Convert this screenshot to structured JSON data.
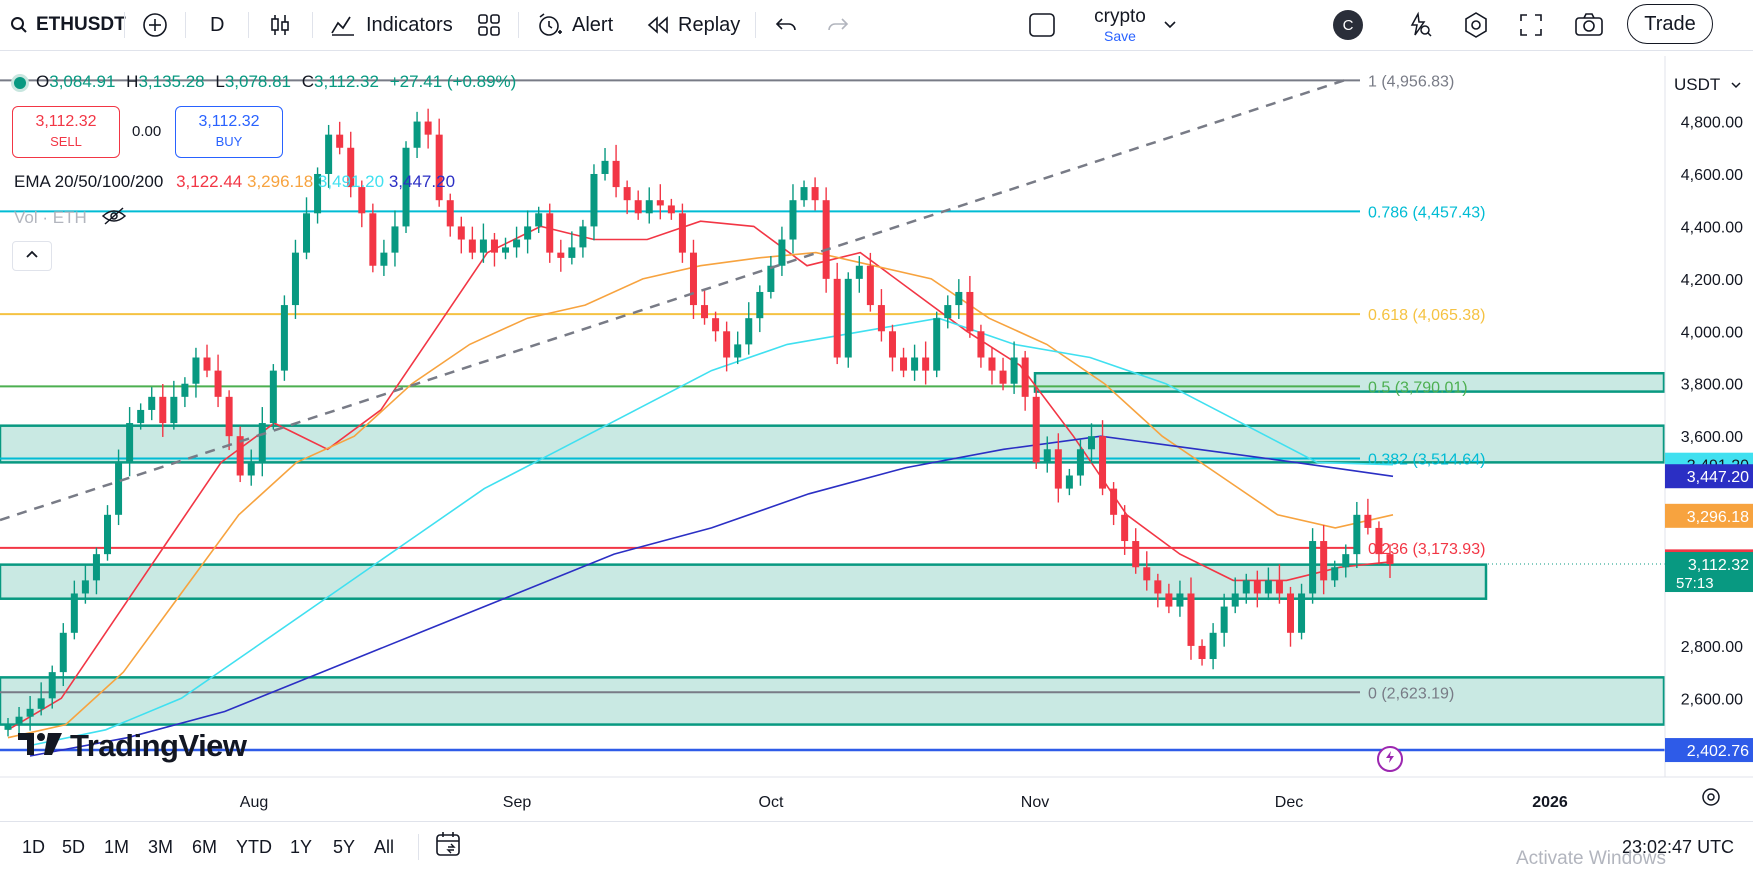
{
  "toolbar": {
    "symbol": "ETHUSDT",
    "interval": "D",
    "indicators_label": "Indicators",
    "alert_label": "Alert",
    "replay_label": "Replay",
    "layout_name": "crypto",
    "layout_save": "Save",
    "avatar_letter": "C",
    "trade_label": "Trade"
  },
  "ohlc": {
    "open_label": "O",
    "open": "3,084.91",
    "high_label": "H",
    "high": "3,135.28",
    "low_label": "L",
    "low": "3,078.81",
    "close_label": "C",
    "close": "3,112.32",
    "change": "+27.41 (+0.89%)"
  },
  "trade_panel": {
    "sell_price": "3,112.32",
    "sell_label": "SELL",
    "spread": "0.00",
    "buy_price": "3,112.32",
    "buy_label": "BUY"
  },
  "ema_legend": {
    "name": "EMA 20/50/100/200",
    "v20": "3,122.44",
    "v50": "3,296.18",
    "v100": "3,491.20",
    "v200": "3,447.20"
  },
  "vol_legend": {
    "label": "Vol · ETH"
  },
  "currency": "USDT",
  "time_axis_labels": [
    "Aug",
    "Sep",
    "Oct",
    "Nov",
    "Dec",
    "2026"
  ],
  "ranges": [
    "1D",
    "5D",
    "1M",
    "3M",
    "6M",
    "YTD",
    "1Y",
    "5Y",
    "All"
  ],
  "clock": "23:02:47 UTC",
  "watermark": "TradingView",
  "activate_text": "Activate Windows",
  "colors": {
    "up": "#089981",
    "down": "#f23645",
    "ema20": "#f23645",
    "ema50": "#f7a33f",
    "ema100": "#40e0f0",
    "ema200": "#2b2fc4",
    "fib_786": "#00bcd4",
    "fib_618": "#f5c242",
    "fib_5": "#4caf50",
    "fib_236": "#f23645",
    "fib_1": "#787b86",
    "fib_0": "#787b86",
    "zone": "#089981",
    "hline_low": "#2e5be8"
  },
  "chart_data": {
    "type": "candlestick",
    "symbol": "ETHUSDT",
    "interval": "D",
    "x_labels": [
      "Aug",
      "Sep",
      "Oct",
      "Nov",
      "Dec",
      "2026"
    ],
    "ylim": [
      2300,
      5050
    ],
    "y_ticks": [
      2600,
      2800,
      3000,
      3200,
      3400,
      3600,
      3800,
      4000,
      4200,
      4400,
      4600,
      4800
    ],
    "y_tick_labels": [
      "2,600.00",
      "2,800.00",
      "",
      "",
      "",
      "3,600.00",
      "3,800.00",
      "4,000.00",
      "4,200.00",
      "4,400.00",
      "4,600.00",
      "4,800.00"
    ],
    "close_series": [
      2500,
      2530,
      2560,
      2600,
      2700,
      2850,
      3000,
      3050,
      3150,
      3300,
      3500,
      3650,
      3700,
      3750,
      3650,
      3750,
      3800,
      3900,
      3850,
      3750,
      3600,
      3450,
      3500,
      3650,
      3850,
      4100,
      4300,
      4450,
      4600,
      4750,
      4700,
      4550,
      4450,
      4250,
      4300,
      4400,
      4700,
      4800,
      4750,
      4500,
      4400,
      4350,
      4300,
      4350,
      4300,
      4320,
      4350,
      4400,
      4450,
      4300,
      4280,
      4320,
      4400,
      4600,
      4650,
      4550,
      4500,
      4450,
      4500,
      4480,
      4450,
      4300,
      4100,
      4050,
      4000,
      3900,
      3950,
      4050,
      4150,
      4250,
      4350,
      4500,
      4550,
      4500,
      4200,
      3900,
      4200,
      4250,
      4100,
      4000,
      3900,
      3850,
      3900,
      3850,
      4050,
      4100,
      4150,
      4000,
      3900,
      3850,
      3800,
      3900,
      3750,
      3500,
      3550,
      3400,
      3450,
      3550,
      3600,
      3400,
      3300,
      3200,
      3100,
      3050,
      3000,
      2950,
      3000,
      2800,
      2750,
      2850,
      2950,
      3000,
      3050,
      3000,
      3050,
      3000,
      2850,
      3000,
      3200,
      3050,
      3100,
      3150,
      3300,
      3250,
      3150,
      3112
    ],
    "ema": [
      {
        "name": "EMA 20",
        "last": 3122.44,
        "values": [
          2480,
          2600,
          2900,
          3200,
          3500,
          3650,
          3550,
          3700,
          4000,
          4300,
          4400,
          4350,
          4350,
          4420,
          4400,
          4250,
          4300,
          4150,
          4000,
          3870,
          3600,
          3300,
          3150,
          3050,
          3050,
          3100,
          3122
        ]
      },
      {
        "name": "EMA 50",
        "last": 3296.18,
        "values": [
          2450,
          2500,
          2700,
          3000,
          3300,
          3500,
          3600,
          3800,
          3950,
          4050,
          4100,
          4200,
          4250,
          4280,
          4300,
          4250,
          4200,
          4050,
          3950,
          3800,
          3600,
          3450,
          3300,
          3250,
          3300
        ]
      },
      {
        "name": "EMA 100",
        "last": 3491.2,
        "values": [
          2420,
          2480,
          2600,
          2800,
          3000,
          3200,
          3400,
          3550,
          3700,
          3850,
          3950,
          4000,
          4050,
          3950,
          3900,
          3800,
          3650,
          3500,
          3491
        ]
      },
      {
        "name": "EMA 200",
        "last": 3447.2,
        "values": [
          2380,
          2450,
          2550,
          2700,
          2850,
          3000,
          3150,
          3250,
          3380,
          3480,
          3550,
          3600,
          3550,
          3500,
          3447
        ]
      }
    ],
    "fib_levels": [
      {
        "level": "1",
        "price": 4956.83,
        "label": "1 (4,956.83)"
      },
      {
        "level": "0.786",
        "price": 4457.43,
        "label": "0.786 (4,457.43)"
      },
      {
        "level": "0.618",
        "price": 4065.38,
        "label": "0.618 (4,065.38)"
      },
      {
        "level": "0.5",
        "price": 3790.01,
        "label": "0.5 (3,790.01)"
      },
      {
        "level": "0.382",
        "price": 3514.64,
        "label": "0.382 (3,514.64)"
      },
      {
        "level": "0.236",
        "price": 3173.93,
        "label": "0.236 (3,173.93)"
      },
      {
        "level": "0",
        "price": 2623.19,
        "label": "0 (2,623.19)"
      }
    ],
    "zones": [
      {
        "from": 3770,
        "to": 3840
      },
      {
        "from": 3500,
        "to": 3640
      },
      {
        "from": 2980,
        "to": 3110
      },
      {
        "from": 2500,
        "to": 2680
      }
    ],
    "horizontal_line": 2402.76,
    "price_labels": [
      {
        "value": "3,491.20",
        "color": "#40e0f0"
      },
      {
        "value": "3,447.20",
        "color": "#2b2fc4"
      },
      {
        "value": "3,296.18",
        "color": "#f7a33f"
      },
      {
        "value": "3,122.44",
        "color": "#f23645"
      },
      {
        "value": "3,112.32",
        "sub": "57:13",
        "color": "#089981"
      },
      {
        "value": "2,402.76",
        "color": "#2e5be8"
      }
    ]
  }
}
